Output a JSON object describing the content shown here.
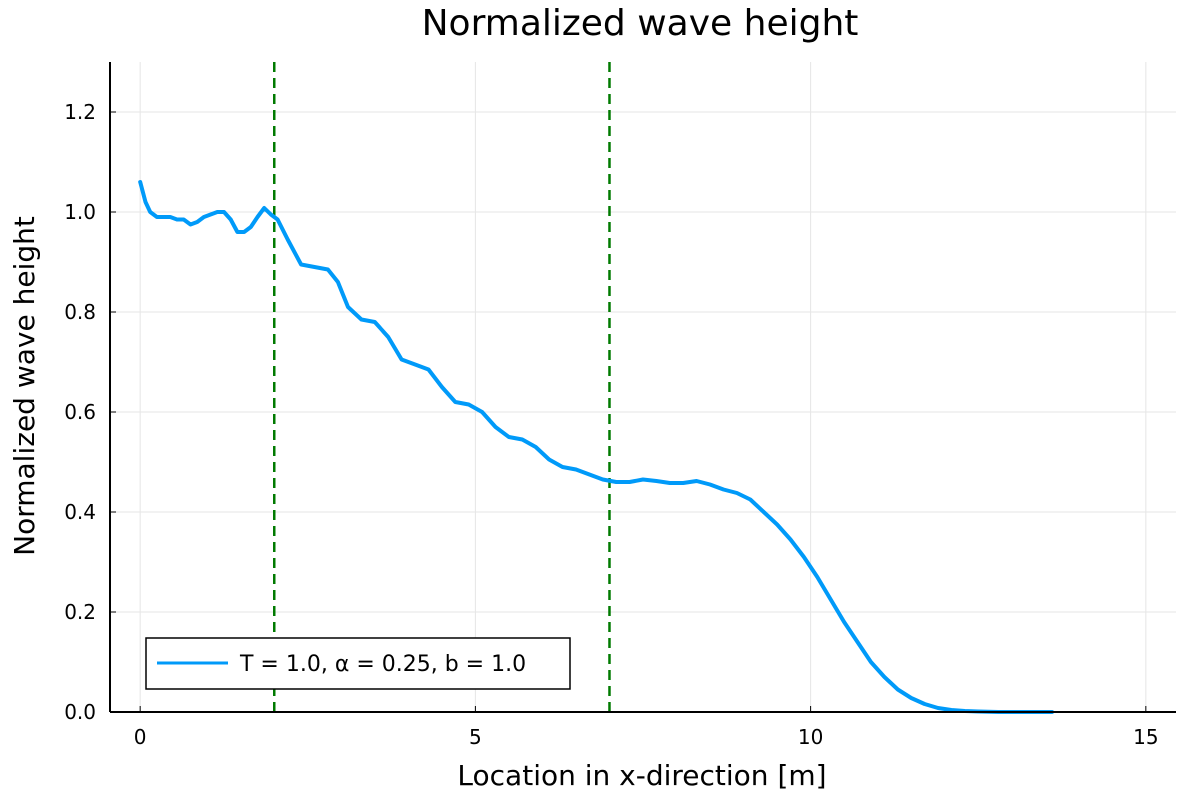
{
  "chart_data": {
    "type": "line",
    "title": "Normalized wave height",
    "xlabel": "Location in x-direction [m]",
    "ylabel": "Normalized wave height",
    "xlim": [
      -0.45,
      15.45
    ],
    "ylim": [
      0.0,
      1.3
    ],
    "xticks": [
      0,
      5,
      10,
      15
    ],
    "xtick_labels": [
      "0",
      "5",
      "10",
      "15"
    ],
    "yticks": [
      0.0,
      0.2,
      0.4,
      0.6,
      0.8,
      1.0,
      1.2
    ],
    "ytick_labels": [
      "0.0",
      "0.2",
      "0.4",
      "0.6",
      "0.8",
      "1.0",
      "1.2"
    ],
    "grid": true,
    "legend_position": "bottom-left",
    "series": [
      {
        "name": "T = 1.0, α = 0.25, b = 1.0",
        "color": "#009af9",
        "x": [
          0.0,
          0.08,
          0.15,
          0.25,
          0.35,
          0.45,
          0.55,
          0.65,
          0.75,
          0.85,
          0.95,
          1.05,
          1.15,
          1.25,
          1.35,
          1.45,
          1.55,
          1.65,
          1.75,
          1.85,
          1.95,
          2.05,
          2.2,
          2.4,
          2.6,
          2.8,
          2.95,
          3.1,
          3.3,
          3.5,
          3.7,
          3.9,
          4.1,
          4.3,
          4.5,
          4.7,
          4.9,
          5.1,
          5.3,
          5.5,
          5.7,
          5.9,
          6.1,
          6.3,
          6.5,
          6.7,
          6.9,
          7.1,
          7.3,
          7.5,
          7.7,
          7.9,
          8.1,
          8.3,
          8.5,
          8.7,
          8.9,
          9.1,
          9.3,
          9.5,
          9.7,
          9.9,
          10.1,
          10.3,
          10.5,
          10.7,
          10.9,
          11.1,
          11.3,
          11.5,
          11.7,
          11.9,
          12.1,
          12.3,
          12.5,
          12.8,
          13.2,
          13.6
        ],
        "y": [
          1.06,
          1.02,
          1.0,
          0.99,
          0.99,
          0.99,
          0.985,
          0.985,
          0.975,
          0.98,
          0.99,
          0.995,
          1.0,
          1.0,
          0.985,
          0.96,
          0.96,
          0.97,
          0.99,
          1.008,
          0.995,
          0.985,
          0.945,
          0.895,
          0.89,
          0.885,
          0.86,
          0.81,
          0.785,
          0.78,
          0.75,
          0.705,
          0.695,
          0.685,
          0.65,
          0.62,
          0.615,
          0.6,
          0.57,
          0.55,
          0.545,
          0.53,
          0.505,
          0.49,
          0.485,
          0.475,
          0.465,
          0.46,
          0.46,
          0.465,
          0.462,
          0.458,
          0.458,
          0.462,
          0.455,
          0.445,
          0.438,
          0.425,
          0.4,
          0.375,
          0.345,
          0.31,
          0.27,
          0.225,
          0.18,
          0.14,
          0.1,
          0.07,
          0.045,
          0.028,
          0.016,
          0.008,
          0.004,
          0.002,
          0.001,
          0.0,
          0.0,
          0.0
        ]
      }
    ],
    "vlines": [
      {
        "x": 2.0,
        "color": "#007a00",
        "style": "dashed"
      },
      {
        "x": 7.0,
        "color": "#007a00",
        "style": "dashed"
      }
    ]
  }
}
